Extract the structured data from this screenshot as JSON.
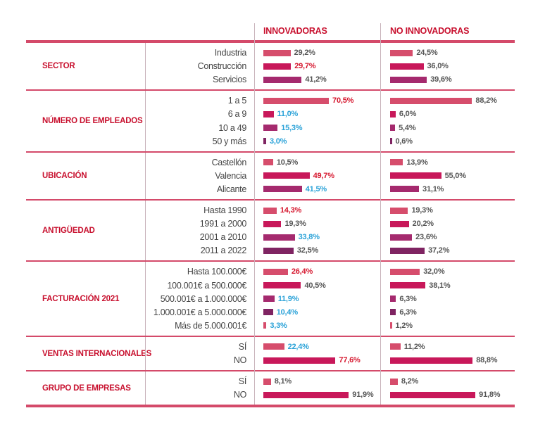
{
  "columns": {
    "innovadoras": "INNOVADORAS",
    "no_innovadoras": "NO INNOVADORAS"
  },
  "colors": {
    "c1": "#d64d6c",
    "c2": "#c8185a",
    "c3": "#a52a6e",
    "c4": "#7f2462",
    "red_text": "#d6182f",
    "blue_text": "#2aa2d8",
    "gray_text": "#555555",
    "rule": "#d44a6a"
  },
  "chart_data": {
    "type": "bar",
    "orientation": "horizontal",
    "series": [
      {
        "name": "INNOVADORAS"
      },
      {
        "name": "NO INNOVADORAS"
      }
    ],
    "groups": [
      {
        "category": "SECTOR",
        "rows": [
          {
            "label": "Industria",
            "innov": 29.2,
            "innov_text": "29,2%",
            "innov_hl": "none",
            "no": 24.5,
            "no_text": "24,5%"
          },
          {
            "label": "Construcción",
            "innov": 29.7,
            "innov_text": "29,7%",
            "innov_hl": "red",
            "no": 36.0,
            "no_text": "36,0%"
          },
          {
            "label": "Servicios",
            "innov": 41.2,
            "innov_text": "41,2%",
            "innov_hl": "none",
            "no": 39.6,
            "no_text": "39,6%"
          }
        ]
      },
      {
        "category": "NÚMERO DE EMPLEADOS",
        "rows": [
          {
            "label": "1 a 5",
            "innov": 70.5,
            "innov_text": "70,5%",
            "innov_hl": "red",
            "no": 88.2,
            "no_text": "88,2%"
          },
          {
            "label": "6  a 9",
            "innov": 11.0,
            "innov_text": "11,0%",
            "innov_hl": "blue",
            "no": 6.0,
            "no_text": "6,0%"
          },
          {
            "label": "10 a 49",
            "innov": 15.3,
            "innov_text": "15,3%",
            "innov_hl": "blue",
            "no": 5.4,
            "no_text": "5,4%"
          },
          {
            "label": "50 y más",
            "innov": 3.0,
            "innov_text": "3,0%",
            "innov_hl": "blue",
            "no": 0.6,
            "no_text": "0,6%"
          }
        ]
      },
      {
        "category": "UBICACIÓN",
        "rows": [
          {
            "label": "Castellón",
            "innov": 10.5,
            "innov_text": "10,5%",
            "innov_hl": "none",
            "no": 13.9,
            "no_text": "13,9%"
          },
          {
            "label": "Valencia",
            "innov": 49.7,
            "innov_text": "49,7%",
            "innov_hl": "red",
            "no": 55.0,
            "no_text": "55,0%"
          },
          {
            "label": "Alicante",
            "innov": 41.5,
            "innov_text": "41,5%",
            "innov_hl": "blue",
            "no": 31.1,
            "no_text": "31,1%"
          }
        ]
      },
      {
        "category": "ANTIGÜEDAD",
        "rows": [
          {
            "label": "Hasta 1990",
            "innov": 14.3,
            "innov_text": "14,3%",
            "innov_hl": "red",
            "no": 19.3,
            "no_text": "19,3%"
          },
          {
            "label": "1991 a 2000",
            "innov": 19.3,
            "innov_text": "19,3%",
            "innov_hl": "none",
            "no": 20.2,
            "no_text": "20,2%"
          },
          {
            "label": "2001 a 2010",
            "innov": 33.8,
            "innov_text": "33,8%",
            "innov_hl": "blue",
            "no": 23.6,
            "no_text": "23,6%"
          },
          {
            "label": "2011 a 2022",
            "innov": 32.5,
            "innov_text": "32,5%",
            "innov_hl": "none",
            "no": 37.2,
            "no_text": "37,2%"
          }
        ]
      },
      {
        "category": "FACTURACIÓN 2021",
        "rows": [
          {
            "label": "Hasta 100.000€",
            "innov": 26.4,
            "innov_text": "26,4%",
            "innov_hl": "red",
            "no": 32.0,
            "no_text": "32,0%"
          },
          {
            "label": "100.001€ a 500.000€",
            "innov": 40.5,
            "innov_text": "40,5%",
            "innov_hl": "none",
            "no": 38.1,
            "no_text": "38,1%"
          },
          {
            "label": "500.001€ a 1.000.000€",
            "innov": 11.9,
            "innov_text": "11,9%",
            "innov_hl": "blue",
            "no": 6.3,
            "no_text": "6,3%"
          },
          {
            "label": "1.000.001€ a 5.000.000€",
            "innov": 10.4,
            "innov_text": "10,4%",
            "innov_hl": "blue",
            "no": 6.3,
            "no_text": "6,3%"
          },
          {
            "label": "Más de 5.000.001€",
            "innov": 3.3,
            "innov_text": "3,3%",
            "innov_hl": "blue",
            "no": 1.2,
            "no_text": "1,2%"
          }
        ]
      },
      {
        "category": "VENTAS INTERNACIONALES",
        "rows": [
          {
            "label": "SÍ",
            "innov": 22.4,
            "innov_text": "22,4%",
            "innov_hl": "blue",
            "no": 11.2,
            "no_text": "11,2%"
          },
          {
            "label": "NO",
            "innov": 77.6,
            "innov_text": "77,6%",
            "innov_hl": "red",
            "no": 88.8,
            "no_text": "88,8%"
          }
        ]
      },
      {
        "category": "GRUPO DE EMPRESAS",
        "rows": [
          {
            "label": "SÍ",
            "innov": 8.1,
            "innov_text": "8,1%",
            "innov_hl": "none",
            "no": 8.2,
            "no_text": "8,2%"
          },
          {
            "label": "NO",
            "innov": 91.9,
            "innov_text": "91,9%",
            "innov_hl": "none",
            "no": 91.8,
            "no_text": "91,8%"
          }
        ]
      }
    ]
  }
}
